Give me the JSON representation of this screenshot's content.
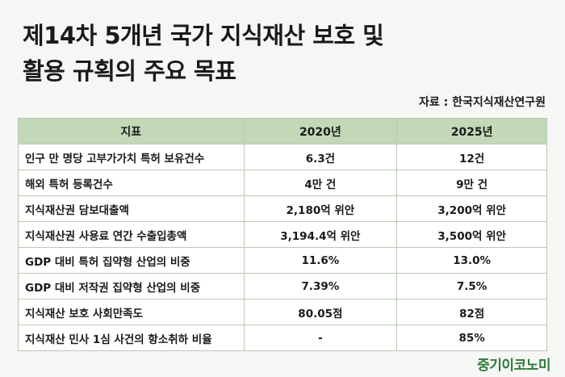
{
  "title": {
    "line1": "제14차 5개년 국가 지식재산 보호 및",
    "line2": "활용 규획의 주요 목표"
  },
  "source": "자료 : 한국지식재산연구원",
  "table": {
    "headers": [
      "지표",
      "2020년",
      "2025년"
    ],
    "rows": [
      {
        "label": "인구 만 명당 고부가가치 특허 보유건수",
        "y2020": "6.3건",
        "y2025": "12건"
      },
      {
        "label": "해외 특허 등록건수",
        "y2020": "4만 건",
        "y2025": "9만 건"
      },
      {
        "label": "지식재산권 담보대출액",
        "y2020": "2,180억 위안",
        "y2025": "3,200억 위안"
      },
      {
        "label": "지식재산권 사용료 연간 수출입총액",
        "y2020": "3,194.4억 위안",
        "y2025": "3,500억 위안"
      },
      {
        "label": "GDP 대비 특허 집약형 산업의 비중",
        "y2020": "11.6%",
        "y2025": "13.0%"
      },
      {
        "label": "GDP 대비 저작권 집약형 산업의 비중",
        "y2020": "7.39%",
        "y2025": "7.5%"
      },
      {
        "label": "지식재산 보호 사회만족도",
        "y2020": "80.05점",
        "y2025": "82점"
      },
      {
        "label": "지식재산 민사 1심 사건의 항소취하 비율",
        "y2020": "-",
        "y2025": "85%"
      }
    ]
  },
  "logo": "중기이코노미",
  "colors": {
    "header_bg": "#c2d8b6",
    "border": "#b9c9b4",
    "logo": "#2f7a3a",
    "background": "#f6f6f4"
  }
}
